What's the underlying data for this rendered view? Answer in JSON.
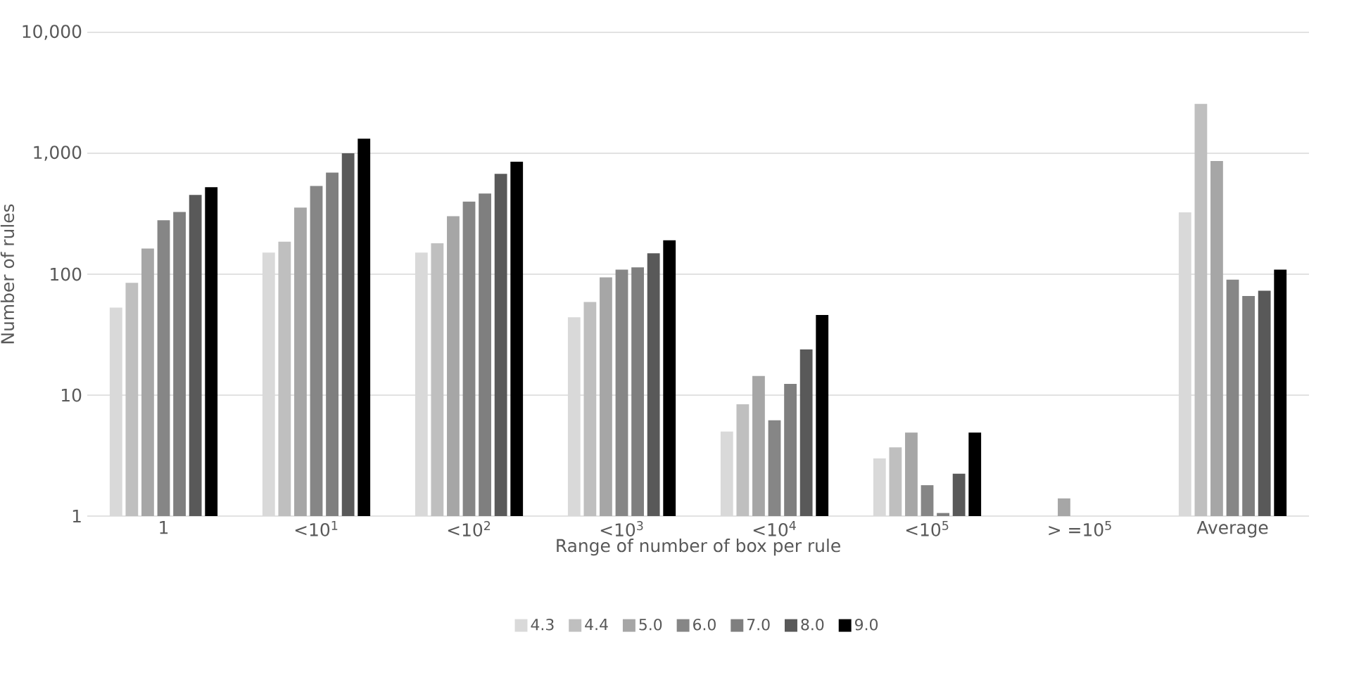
{
  "chart_data": {
    "type": "bar",
    "xlabel": "Range of number of box per rule",
    "ylabel": "Number of rules",
    "categories": [
      "1",
      "<10$^{1}$",
      "<10$^{2}$",
      "<10$^{3}$",
      "<10$^{4}$",
      "<10$^{5}$",
      "> =10$^{5}$",
      "Average"
    ],
    "series": [
      {
        "name": "4.3",
        "color": "#d9d9d9",
        "values": [
          53,
          151,
          151,
          44,
          5.0,
          3.0,
          null,
          325
        ]
      },
      {
        "name": "4.4",
        "color": "#bfbfbf",
        "values": [
          85,
          186,
          180,
          59,
          8.4,
          3.7,
          null,
          2560
        ]
      },
      {
        "name": "5.0",
        "color": "#a6a6a6",
        "values": [
          163,
          355,
          302,
          94,
          14.4,
          4.9,
          1.4,
          863
        ]
      },
      {
        "name": "6.0",
        "color": "#868686",
        "values": [
          279,
          537,
          399,
          109,
          6.2,
          1.8,
          null,
          90
        ]
      },
      {
        "name": "7.0",
        "color": "#7f7f7f",
        "values": [
          327,
          692,
          464,
          114,
          12.4,
          1.06,
          null,
          66
        ]
      },
      {
        "name": "8.0",
        "color": "#595959",
        "values": [
          452,
          1000,
          676,
          149,
          23.9,
          2.24,
          null,
          73
        ]
      },
      {
        "name": "9.0",
        "color": "#000000",
        "values": [
          525,
          1320,
          851,
          191,
          46,
          4.9,
          null,
          109
        ]
      }
    ],
    "log": "y",
    "ylim": [
      1,
      10000
    ],
    "yticks": [
      1,
      10,
      100,
      {
        "value": 1000,
        "label": "1,000"
      },
      {
        "value": 10000,
        "label": "10,000"
      }
    ],
    "grid": "y",
    "legend": "bottom"
  }
}
